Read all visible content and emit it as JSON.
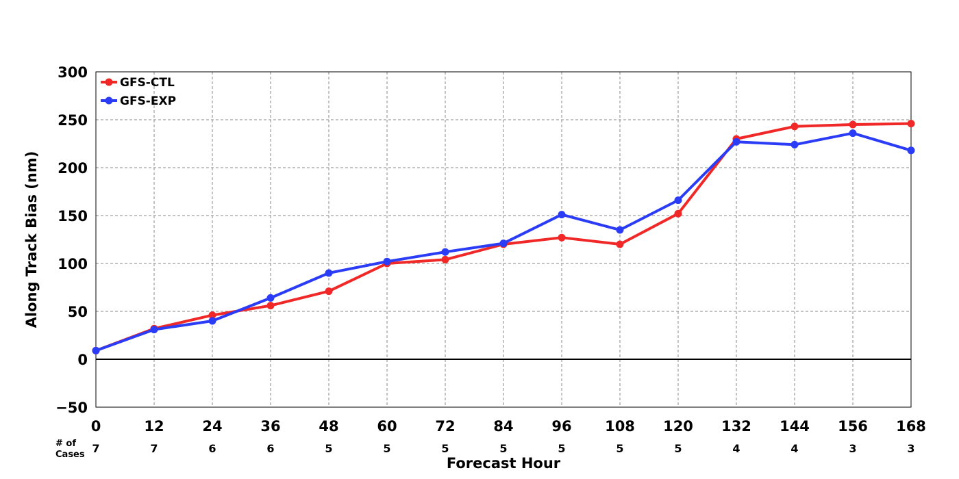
{
  "chart_data": {
    "type": "line",
    "title": "",
    "xlabel": "Forecast Hour",
    "ylabel": "Along Track Bias (nm)",
    "x": [
      0,
      12,
      24,
      36,
      48,
      60,
      72,
      84,
      96,
      108,
      120,
      132,
      144,
      156,
      168
    ],
    "xlim": [
      0,
      168
    ],
    "ylim": [
      -50,
      300
    ],
    "yticks": [
      -50,
      0,
      50,
      100,
      150,
      200,
      250,
      300
    ],
    "ytick_labels": [
      "−50",
      "0",
      "50",
      "100",
      "150",
      "200",
      "250",
      "300"
    ],
    "grid": true,
    "legend_position": "top-left",
    "cases_label_line1": "# of",
    "cases_label_line2": "Cases",
    "cases": [
      7,
      7,
      6,
      6,
      5,
      5,
      5,
      5,
      5,
      5,
      5,
      4,
      4,
      3,
      3
    ],
    "series": [
      {
        "name": "GFS-CTL",
        "color": "#f02828",
        "values": [
          9,
          32,
          46,
          56,
          71,
          100,
          104,
          120,
          127,
          120,
          152,
          230,
          243,
          245,
          246
        ]
      },
      {
        "name": "GFS-EXP",
        "color": "#2a3cf5",
        "values": [
          9,
          31,
          40,
          64,
          90,
          102,
          112,
          121,
          151,
          135,
          166,
          227,
          224,
          236,
          218
        ]
      }
    ]
  }
}
